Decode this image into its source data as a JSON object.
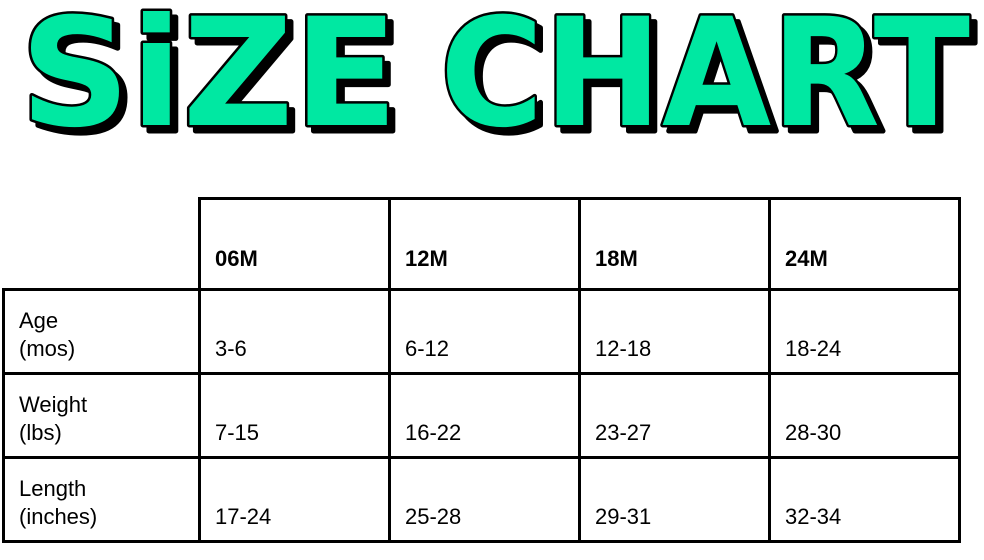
{
  "title": {
    "word1": "SiZE",
    "word2": "CHART",
    "fill_color": "#00E8A2",
    "outline_color": "#000000"
  },
  "table": {
    "columns": [
      "06M",
      "12M",
      "18M",
      "24M"
    ],
    "rows": [
      {
        "label_line1": "Age",
        "label_line2": "(mos)",
        "values": [
          "3-6",
          "6-12",
          "12-18",
          "18-24"
        ]
      },
      {
        "label_line1": "Weight",
        "label_line2": "(lbs)",
        "values": [
          "7-15",
          "16-22",
          "23-27",
          "28-30"
        ]
      },
      {
        "label_line1": "Length",
        "label_line2": "(inches)",
        "values": [
          "17-24",
          "25-28",
          "29-31",
          "32-34"
        ]
      }
    ]
  }
}
